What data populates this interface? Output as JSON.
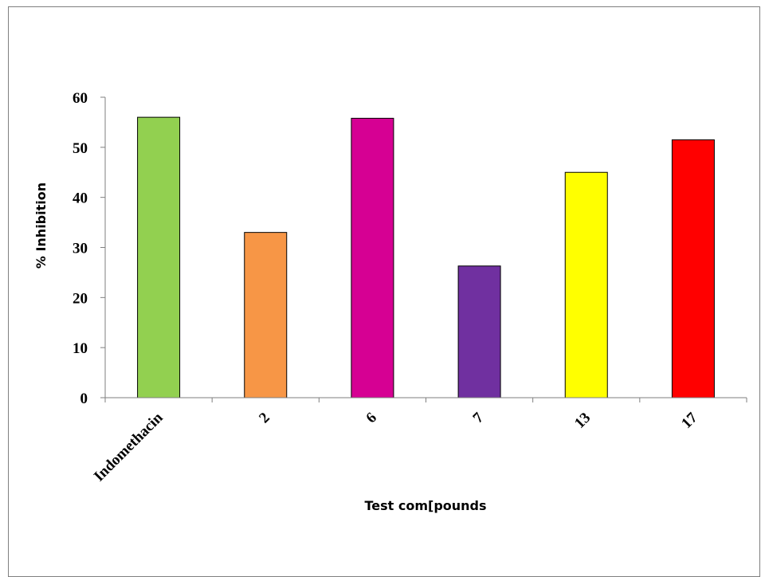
{
  "chart_data": {
    "type": "bar",
    "title": "",
    "xlabel": "Test com[pounds",
    "ylabel": "% Inhibition",
    "categories": [
      "Indomethacin",
      "2",
      "6",
      "7",
      "13",
      "17"
    ],
    "values": [
      56,
      33,
      55.8,
      26.3,
      45,
      51.5
    ],
    "bar_colors": [
      "#92d050",
      "#f79646",
      "#d60093",
      "#7030a0",
      "#ffff00",
      "#ff0000"
    ],
    "ylim": [
      0,
      60
    ],
    "yticks": [
      0,
      10,
      20,
      30,
      40,
      50,
      60
    ],
    "grid": false,
    "legend": "none"
  }
}
